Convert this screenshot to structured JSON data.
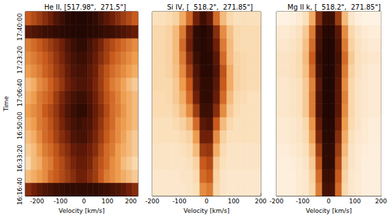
{
  "chart_data": [
    {
      "type": "heatmap",
      "title": "He II, [517.98\",  271.5\"]",
      "xlabel": "Velocity [km/s]",
      "ylabel": "Time",
      "xlim": [
        -250,
        230
      ],
      "xticks": [
        -200,
        -100,
        0,
        100,
        200
      ],
      "ylim": [
        58460,
        64070
      ],
      "yticks": [
        {
          "value": 58600,
          "label": "16:16:40"
        },
        {
          "value": 59600,
          "label": "16:33:20"
        },
        {
          "value": 60600,
          "label": "16:50:00"
        },
        {
          "value": 61600,
          "label": "17:06:40"
        },
        {
          "value": 62600,
          "label": "17:23:20"
        },
        {
          "value": 63600,
          "label": "17:40:00"
        }
      ],
      "grid": false,
      "clim": [
        0,
        1
      ],
      "x_edges": [
        -250,
        -226,
        -202,
        -178,
        -154,
        -130,
        -106,
        -82,
        -58,
        -34,
        -10,
        14,
        38,
        62,
        86,
        110,
        134,
        158,
        182,
        206,
        230
      ],
      "y_edges": [
        58460,
        58860,
        59260,
        59660,
        60060,
        60460,
        60860,
        61260,
        61660,
        62060,
        62460,
        62860,
        63260,
        63660,
        64070
      ],
      "cells": [
        [
          0.75,
          0.8,
          0.85,
          0.88,
          0.9,
          0.92,
          0.93,
          0.95,
          0.95,
          0.95,
          0.95,
          0.95,
          0.95,
          0.93,
          0.92,
          0.9,
          0.88,
          0.85,
          0.8,
          0.75
        ],
        [
          0.3,
          0.35,
          0.4,
          0.45,
          0.55,
          0.6,
          0.65,
          0.7,
          0.75,
          0.8,
          0.8,
          0.75,
          0.7,
          0.6,
          0.5,
          0.45,
          0.4,
          0.35,
          0.3,
          0.25
        ],
        [
          0.2,
          0.3,
          0.35,
          0.45,
          0.5,
          0.6,
          0.65,
          0.72,
          0.78,
          0.82,
          0.82,
          0.78,
          0.7,
          0.62,
          0.55,
          0.45,
          0.4,
          0.3,
          0.25,
          0.2
        ],
        [
          0.25,
          0.3,
          0.4,
          0.5,
          0.55,
          0.62,
          0.7,
          0.75,
          0.82,
          0.85,
          0.85,
          0.8,
          0.75,
          0.65,
          0.55,
          0.5,
          0.4,
          0.35,
          0.3,
          0.25
        ],
        [
          0.3,
          0.35,
          0.45,
          0.55,
          0.6,
          0.68,
          0.75,
          0.8,
          0.88,
          0.9,
          0.9,
          0.85,
          0.78,
          0.7,
          0.6,
          0.52,
          0.45,
          0.38,
          0.3,
          0.25
        ],
        [
          0.35,
          0.4,
          0.5,
          0.55,
          0.62,
          0.7,
          0.78,
          0.85,
          0.9,
          0.92,
          0.9,
          0.88,
          0.8,
          0.72,
          0.62,
          0.55,
          0.45,
          0.4,
          0.35,
          0.3
        ],
        [
          0.4,
          0.45,
          0.5,
          0.6,
          0.65,
          0.72,
          0.8,
          0.88,
          0.92,
          0.95,
          0.95,
          0.9,
          0.82,
          0.75,
          0.65,
          0.55,
          0.5,
          0.42,
          0.35,
          0.3
        ],
        [
          0.35,
          0.4,
          0.5,
          0.55,
          0.6,
          0.7,
          0.78,
          0.85,
          0.9,
          0.92,
          0.92,
          0.88,
          0.8,
          0.72,
          0.62,
          0.55,
          0.48,
          0.4,
          0.35,
          0.3
        ],
        [
          0.3,
          0.35,
          0.45,
          0.5,
          0.58,
          0.65,
          0.72,
          0.8,
          0.85,
          0.88,
          0.88,
          0.85,
          0.78,
          0.7,
          0.6,
          0.5,
          0.45,
          0.38,
          0.3,
          0.25
        ],
        [
          0.4,
          0.45,
          0.5,
          0.58,
          0.62,
          0.7,
          0.75,
          0.82,
          0.88,
          0.9,
          0.9,
          0.85,
          0.8,
          0.7,
          0.62,
          0.55,
          0.5,
          0.45,
          0.4,
          0.35
        ],
        [
          0.45,
          0.5,
          0.55,
          0.6,
          0.65,
          0.72,
          0.78,
          0.85,
          0.9,
          0.92,
          0.92,
          0.88,
          0.82,
          0.75,
          0.68,
          0.6,
          0.55,
          0.5,
          0.45,
          0.4
        ],
        [
          0.5,
          0.55,
          0.6,
          0.65,
          0.7,
          0.75,
          0.8,
          0.88,
          0.92,
          0.95,
          0.95,
          0.9,
          0.85,
          0.78,
          0.7,
          0.65,
          0.6,
          0.55,
          0.5,
          0.45
        ],
        [
          0.85,
          0.88,
          0.9,
          0.92,
          0.93,
          0.95,
          0.96,
          0.97,
          0.98,
          0.98,
          0.98,
          0.97,
          0.96,
          0.95,
          0.93,
          0.92,
          0.9,
          0.88,
          0.85,
          0.82
        ],
        [
          0.6,
          0.65,
          0.7,
          0.75,
          0.8,
          0.88,
          0.92,
          0.96,
          0.98,
          0.98,
          0.98,
          0.97,
          0.95,
          0.9,
          0.85,
          0.8,
          0.75,
          0.7,
          0.65,
          0.6
        ]
      ]
    },
    {
      "type": "heatmap",
      "title": "Si IV, [  518.2\",  271.85\"]",
      "xlabel": "Velocity [km/s]",
      "xlim": [
        -200,
        200
      ],
      "xticks": [
        -200,
        -100,
        0,
        100,
        200
      ],
      "ylim": [
        58460,
        64070
      ],
      "yticks": [
        {
          "value": 58600,
          "label": "16:16:40"
        },
        {
          "value": 59600,
          "label": "16:33:20"
        },
        {
          "value": 60600,
          "label": "16:50:00"
        },
        {
          "value": 61600,
          "label": "17:06:40"
        },
        {
          "value": 62600,
          "label": "17:23:20"
        },
        {
          "value": 63600,
          "label": "17:40:00"
        }
      ],
      "tick_labels": "x",
      "grid": false,
      "clim": [
        0,
        1
      ],
      "x_edges": [
        -200,
        -175,
        -150,
        -125,
        -100,
        -75,
        -50,
        -25,
        0,
        25,
        50,
        75,
        100,
        125,
        150,
        175,
        200
      ],
      "y_edges": [
        58460,
        58860,
        59260,
        59660,
        60060,
        60460,
        60860,
        61260,
        61660,
        62060,
        62460,
        62860,
        63260,
        63660,
        64070
      ],
      "cells": [
        [
          0.1,
          0.1,
          0.1,
          0.1,
          0.1,
          0.12,
          0.15,
          0.45,
          0.5,
          0.2,
          0.12,
          0.1,
          0.1,
          0.1,
          0.1,
          0.1
        ],
        [
          0.1,
          0.1,
          0.1,
          0.1,
          0.12,
          0.12,
          0.18,
          0.55,
          0.6,
          0.22,
          0.12,
          0.1,
          0.1,
          0.1,
          0.1,
          0.1
        ],
        [
          0.12,
          0.12,
          0.12,
          0.12,
          0.12,
          0.15,
          0.22,
          0.6,
          0.65,
          0.25,
          0.15,
          0.12,
          0.12,
          0.12,
          0.12,
          0.12
        ],
        [
          0.12,
          0.12,
          0.12,
          0.12,
          0.15,
          0.18,
          0.3,
          0.7,
          0.72,
          0.35,
          0.18,
          0.12,
          0.12,
          0.12,
          0.12,
          0.12
        ],
        [
          0.15,
          0.15,
          0.15,
          0.15,
          0.18,
          0.22,
          0.4,
          0.8,
          0.8,
          0.45,
          0.22,
          0.15,
          0.15,
          0.15,
          0.15,
          0.15
        ],
        [
          0.15,
          0.15,
          0.15,
          0.18,
          0.22,
          0.3,
          0.55,
          0.85,
          0.88,
          0.6,
          0.3,
          0.2,
          0.15,
          0.15,
          0.15,
          0.15
        ],
        [
          0.18,
          0.18,
          0.18,
          0.22,
          0.3,
          0.45,
          0.7,
          0.92,
          0.92,
          0.75,
          0.45,
          0.25,
          0.18,
          0.15,
          0.15,
          0.15
        ],
        [
          0.18,
          0.18,
          0.2,
          0.25,
          0.35,
          0.55,
          0.8,
          0.95,
          0.95,
          0.82,
          0.55,
          0.3,
          0.2,
          0.18,
          0.15,
          0.15
        ],
        [
          0.2,
          0.2,
          0.2,
          0.25,
          0.4,
          0.6,
          0.85,
          0.95,
          0.95,
          0.85,
          0.6,
          0.35,
          0.22,
          0.2,
          0.18,
          0.18
        ],
        [
          0.2,
          0.2,
          0.22,
          0.28,
          0.45,
          0.68,
          0.88,
          0.96,
          0.96,
          0.88,
          0.62,
          0.35,
          0.22,
          0.2,
          0.18,
          0.18
        ],
        [
          0.2,
          0.2,
          0.22,
          0.3,
          0.5,
          0.75,
          0.92,
          0.97,
          0.96,
          0.85,
          0.55,
          0.3,
          0.22,
          0.2,
          0.18,
          0.18
        ],
        [
          0.2,
          0.2,
          0.22,
          0.3,
          0.55,
          0.8,
          0.95,
          0.97,
          0.95,
          0.8,
          0.5,
          0.3,
          0.2,
          0.18,
          0.18,
          0.18
        ],
        [
          0.2,
          0.2,
          0.22,
          0.3,
          0.5,
          0.78,
          0.95,
          0.98,
          0.95,
          0.75,
          0.45,
          0.28,
          0.2,
          0.18,
          0.18,
          0.18
        ],
        [
          0.15,
          0.15,
          0.18,
          0.22,
          0.35,
          0.55,
          0.8,
          0.92,
          0.85,
          0.55,
          0.3,
          0.2,
          0.15,
          0.15,
          0.15,
          0.15
        ]
      ]
    },
    {
      "type": "heatmap",
      "title": "Mg II k, [  518.2\",  271.85\"]",
      "xlabel": "Velocity [km/s]",
      "xlim": [
        -200,
        200
      ],
      "xticks": [
        -200,
        -100,
        0,
        100,
        200
      ],
      "ylim": [
        58460,
        64070
      ],
      "yticks": [
        {
          "value": 58600,
          "label": "16:16:40"
        },
        {
          "value": 59600,
          "label": "16:33:20"
        },
        {
          "value": 60600,
          "label": "16:50:00"
        },
        {
          "value": 61600,
          "label": "17:06:40"
        },
        {
          "value": 62600,
          "label": "17:23:20"
        },
        {
          "value": 63600,
          "label": "17:40:00"
        }
      ],
      "tick_labels": "x",
      "grid": false,
      "clim": [
        0,
        1
      ],
      "x_edges": [
        -200,
        -175,
        -150,
        -125,
        -100,
        -75,
        -50,
        -25,
        0,
        25,
        50,
        75,
        100,
        125,
        150,
        175,
        200
      ],
      "y_edges": [
        58460,
        58860,
        59260,
        59660,
        60060,
        60460,
        60860,
        61260,
        61660,
        62060,
        62460,
        62860,
        63260,
        63660,
        64070
      ],
      "cells": [
        [
          0.05,
          0.05,
          0.05,
          0.08,
          0.1,
          0.2,
          0.5,
          0.9,
          0.9,
          0.55,
          0.2,
          0.1,
          0.08,
          0.05,
          0.05,
          0.05
        ],
        [
          0.05,
          0.05,
          0.05,
          0.08,
          0.1,
          0.22,
          0.55,
          0.92,
          0.92,
          0.6,
          0.22,
          0.1,
          0.08,
          0.05,
          0.05,
          0.05
        ],
        [
          0.05,
          0.05,
          0.06,
          0.08,
          0.12,
          0.25,
          0.62,
          0.95,
          0.95,
          0.65,
          0.25,
          0.12,
          0.08,
          0.05,
          0.05,
          0.05
        ],
        [
          0.06,
          0.06,
          0.08,
          0.1,
          0.15,
          0.3,
          0.7,
          0.95,
          0.95,
          0.7,
          0.3,
          0.12,
          0.08,
          0.06,
          0.05,
          0.05
        ],
        [
          0.08,
          0.08,
          0.1,
          0.12,
          0.18,
          0.38,
          0.78,
          0.96,
          0.96,
          0.75,
          0.35,
          0.15,
          0.1,
          0.08,
          0.06,
          0.06
        ],
        [
          0.08,
          0.08,
          0.1,
          0.12,
          0.2,
          0.42,
          0.82,
          0.97,
          0.97,
          0.8,
          0.4,
          0.18,
          0.12,
          0.08,
          0.06,
          0.06
        ],
        [
          0.1,
          0.1,
          0.12,
          0.15,
          0.25,
          0.5,
          0.88,
          0.98,
          0.98,
          0.85,
          0.45,
          0.2,
          0.12,
          0.1,
          0.08,
          0.08
        ],
        [
          0.1,
          0.1,
          0.12,
          0.15,
          0.25,
          0.5,
          0.88,
          0.98,
          0.98,
          0.85,
          0.48,
          0.2,
          0.12,
          0.1,
          0.08,
          0.08
        ],
        [
          0.1,
          0.1,
          0.12,
          0.15,
          0.25,
          0.48,
          0.85,
          0.98,
          0.98,
          0.85,
          0.45,
          0.2,
          0.12,
          0.1,
          0.08,
          0.08
        ],
        [
          0.12,
          0.12,
          0.14,
          0.18,
          0.28,
          0.55,
          0.9,
          0.98,
          0.98,
          0.88,
          0.5,
          0.22,
          0.14,
          0.1,
          0.08,
          0.08
        ],
        [
          0.12,
          0.12,
          0.14,
          0.18,
          0.3,
          0.6,
          0.92,
          0.98,
          0.98,
          0.9,
          0.55,
          0.25,
          0.15,
          0.12,
          0.1,
          0.1
        ],
        [
          0.1,
          0.1,
          0.12,
          0.16,
          0.28,
          0.55,
          0.9,
          0.98,
          0.98,
          0.88,
          0.5,
          0.22,
          0.14,
          0.1,
          0.08,
          0.08
        ],
        [
          0.08,
          0.08,
          0.1,
          0.14,
          0.25,
          0.5,
          0.88,
          0.97,
          0.97,
          0.85,
          0.45,
          0.2,
          0.12,
          0.08,
          0.06,
          0.06
        ],
        [
          0.03,
          0.03,
          0.05,
          0.08,
          0.15,
          0.35,
          0.75,
          0.92,
          0.92,
          0.7,
          0.3,
          0.1,
          0.05,
          0.03,
          0.03,
          0.03
        ]
      ]
    }
  ]
}
